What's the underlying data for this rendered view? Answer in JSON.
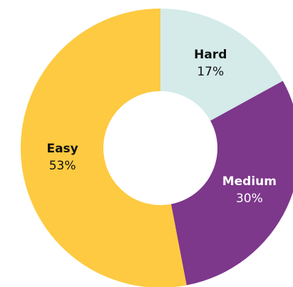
{
  "chart_data": {
    "type": "pie",
    "categories": [
      "Hard",
      "Medium",
      "Easy"
    ],
    "values": [
      17,
      30,
      53
    ],
    "value_labels": [
      "17%",
      "30%",
      "53%"
    ],
    "colors": [
      "#d4ebe9",
      "#7d378b",
      "#fdca41"
    ],
    "label_colors": [
      "#111111",
      "#ffffff",
      "#111111"
    ],
    "donut": true
  }
}
